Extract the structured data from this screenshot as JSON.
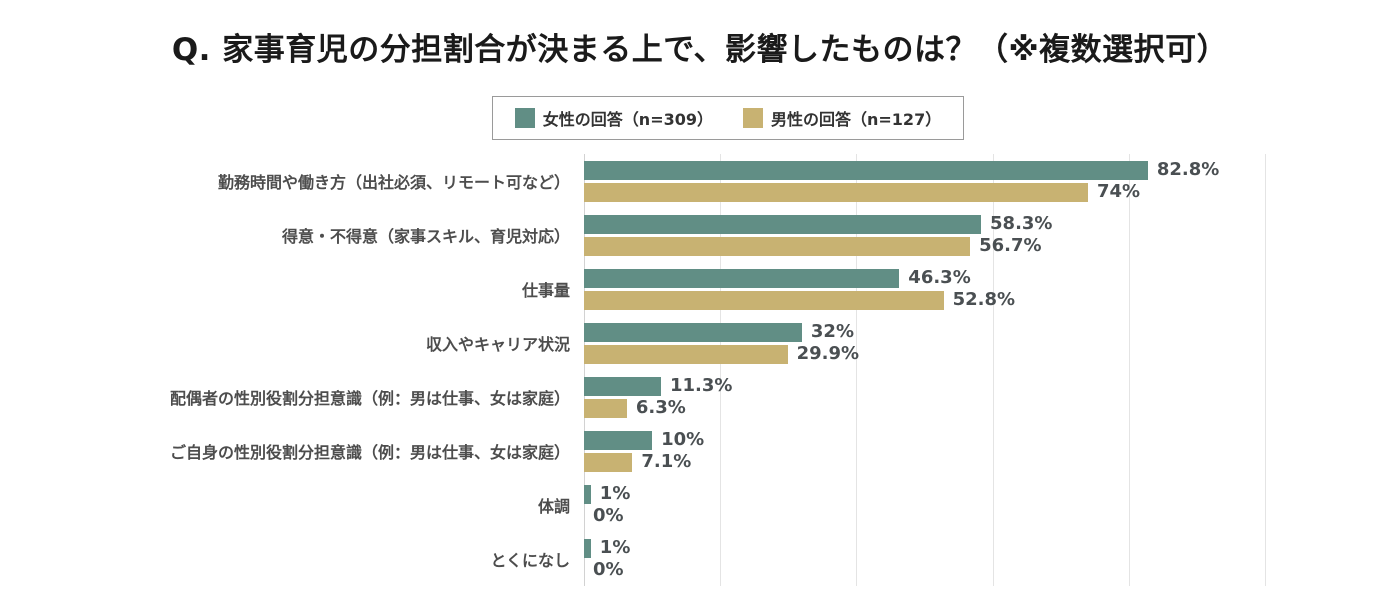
{
  "title": "Q. 家事育児の分担割合が決まる上で、影響したものは？（※複数選択可）",
  "colors": {
    "female": "#618e85",
    "male": "#c8b272",
    "grid": "#e4e4e4",
    "axis_line": "#d2d2d2",
    "title_text": "#1a1a1a",
    "label_text": "#4d4d4d",
    "value_text": "#4a4f52"
  },
  "legend": {
    "items": [
      {
        "label": "女性の回答（n=309）",
        "color_key": "female"
      },
      {
        "label": "男性の回答（n=127）",
        "color_key": "male"
      }
    ]
  },
  "chart_data": {
    "type": "bar",
    "orientation": "horizontal",
    "title": "Q. 家事育児の分担割合が決まる上で、影響したものは？（※複数選択可）",
    "categories": [
      "勤務時間や働き方（出社必須、リモート可など）",
      "得意・不得意（家事スキル、育児対応）",
      "仕事量",
      "収入やキャリア状況",
      "配偶者の性別役割分担意識（例：男は仕事、女は家庭）",
      "ご自身の性別役割分担意識（例：男は仕事、女は家庭）",
      "体調",
      "とくになし"
    ],
    "series": [
      {
        "name": "女性の回答（n=309）",
        "values": [
          82.8,
          58.3,
          46.3,
          32,
          11.3,
          10,
          1,
          1
        ],
        "labels": [
          "82.8%",
          "58.3%",
          "46.3%",
          "32%",
          "11.3%",
          "10%",
          "1%",
          "1%"
        ]
      },
      {
        "name": "男性の回答（n=127）",
        "values": [
          74,
          56.7,
          52.8,
          29.9,
          6.3,
          7.1,
          0,
          0
        ],
        "labels": [
          "74%",
          "56.7%",
          "52.8%",
          "29.9%",
          "6.3%",
          "7.1%",
          "0%",
          "0%"
        ]
      }
    ],
    "xlim": [
      0,
      100
    ],
    "gridlines_percent": [
      0,
      20,
      40,
      60,
      80,
      100
    ],
    "grid": "vertical",
    "legend_position": "top",
    "value_labels": "outside-end"
  }
}
